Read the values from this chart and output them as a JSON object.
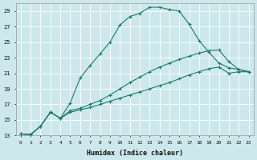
{
  "xlabel": "Humidex (Indice chaleur)",
  "background_color": "#cde8ec",
  "grid_color": "#b0d5da",
  "line_color": "#1a7a6e",
  "xlim": [
    -0.5,
    23.5
  ],
  "ylim": [
    13,
    30
  ],
  "xticks": [
    0,
    1,
    2,
    3,
    4,
    5,
    6,
    7,
    8,
    9,
    10,
    11,
    12,
    13,
    14,
    15,
    16,
    17,
    18,
    19,
    20,
    21,
    22,
    23
  ],
  "yticks": [
    13,
    15,
    17,
    19,
    21,
    23,
    25,
    27,
    29
  ],
  "series": [
    {
      "x": [
        0,
        1,
        2,
        3,
        4,
        5,
        6,
        7,
        8,
        9,
        10,
        11,
        12,
        13,
        14,
        15,
        16,
        17,
        18,
        19,
        20,
        21,
        22,
        23
      ],
      "y": [
        13.2,
        13.1,
        14.2,
        16.0,
        15.2,
        16.0,
        16.3,
        16.6,
        17.0,
        17.4,
        17.8,
        18.2,
        18.6,
        19.0,
        19.4,
        19.8,
        20.3,
        20.8,
        21.2,
        21.6,
        21.8,
        21.0,
        21.2,
        21.2
      ]
    },
    {
      "x": [
        0,
        1,
        2,
        3,
        4,
        5,
        6,
        7,
        8,
        9,
        10,
        11,
        12,
        13,
        14,
        15,
        16,
        17,
        18,
        19,
        20,
        21,
        22,
        23
      ],
      "y": [
        13.2,
        13.1,
        14.2,
        16.0,
        15.2,
        16.2,
        16.5,
        17.0,
        17.5,
        18.2,
        19.0,
        19.8,
        20.5,
        21.2,
        21.8,
        22.3,
        22.8,
        23.2,
        23.6,
        23.9,
        24.0,
        22.5,
        21.5,
        21.2
      ]
    },
    {
      "x": [
        0,
        1,
        2,
        3,
        4,
        5,
        6,
        7,
        8,
        9,
        10,
        11,
        12,
        13,
        14,
        15,
        16,
        17,
        18,
        19,
        20,
        21,
        22,
        23
      ],
      "y": [
        13.2,
        13.1,
        14.2,
        16.0,
        15.2,
        17.2,
        20.4,
        22.0,
        23.5,
        25.0,
        27.2,
        28.3,
        28.7,
        29.5,
        29.5,
        29.2,
        29.0,
        27.3,
        25.2,
        23.7,
        22.3,
        21.7,
        21.5,
        21.2
      ]
    }
  ]
}
